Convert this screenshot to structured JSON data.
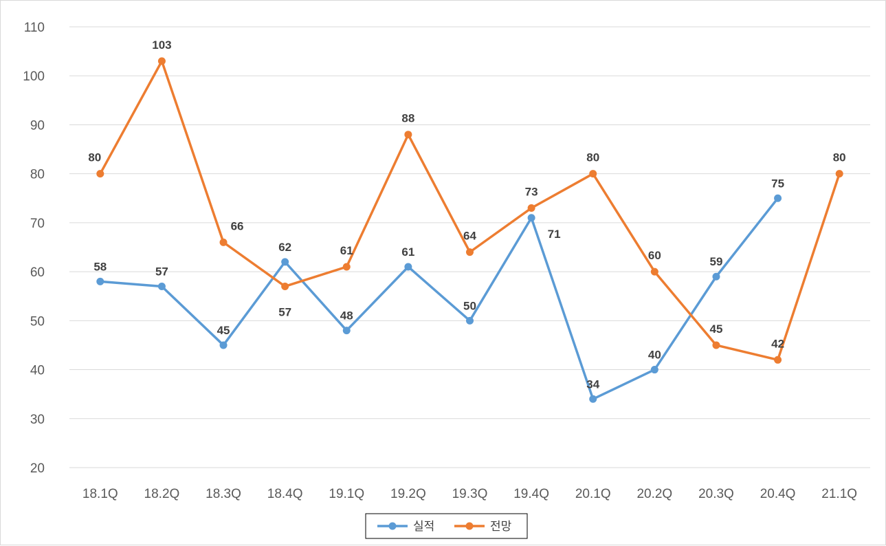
{
  "chart_data": {
    "type": "line",
    "categories": [
      "18.1Q",
      "18.2Q",
      "18.3Q",
      "18.4Q",
      "19.1Q",
      "19.2Q",
      "19.3Q",
      "19.4Q",
      "20.1Q",
      "20.2Q",
      "20.3Q",
      "20.4Q",
      "21.1Q"
    ],
    "ylim": [
      20,
      110
    ],
    "yticks": [
      20,
      30,
      40,
      50,
      60,
      70,
      80,
      90,
      100,
      110
    ],
    "grid": true,
    "legend_position": "bottom",
    "series": [
      {
        "name": "실적",
        "color": "#5b9bd5",
        "values": [
          58,
          57,
          45,
          62,
          48,
          61,
          50,
          71,
          34,
          40,
          59,
          75,
          null
        ],
        "labels": [
          "58",
          "57",
          "45",
          "62",
          "48",
          "61",
          "50",
          "71",
          "34",
          "40",
          "59",
          "75",
          ""
        ]
      },
      {
        "name": "전망",
        "color": "#ed7d31",
        "values": [
          80,
          103,
          66,
          57,
          61,
          88,
          64,
          73,
          80,
          60,
          45,
          42,
          80
        ],
        "labels": [
          "80",
          "103",
          "66",
          "57",
          "61",
          "88",
          "64",
          "73",
          "80",
          "60",
          "45",
          "42",
          "80"
        ]
      }
    ]
  }
}
